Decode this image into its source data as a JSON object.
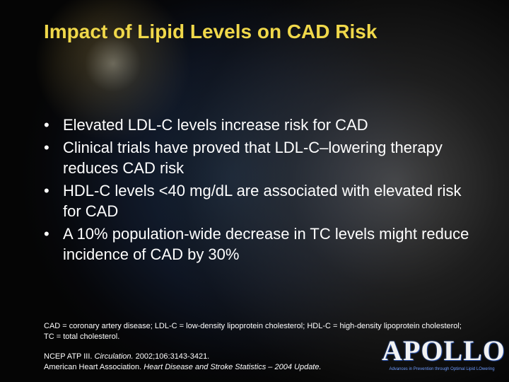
{
  "title": "Impact of Lipid Levels on CAD Risk",
  "bullets": [
    "Elevated LDL-C levels increase risk for CAD",
    "Clinical trials have proved that LDL-C–lowering therapy reduces CAD risk",
    "HDL-C levels <40 mg/dL are associated with elevated risk for CAD",
    "A 10% population-wide decrease in TC levels might reduce incidence of CAD by 30%"
  ],
  "footnote": "CAD = coronary artery disease; LDL-C = low-density lipoprotein cholesterol; HDL-C = high-density lipoprotein cholesterol; TC = total cholesterol.",
  "references": [
    {
      "source": "NCEP ATP III.",
      "journal": "Circulation.",
      "details": "2002;106:3143-3421."
    },
    {
      "source": "American Heart Association.",
      "journal": "Heart Disease and Stroke Statistics – 2004 Update."
    }
  ],
  "logo": {
    "name": "APOLLO",
    "tagline": "Advances in Prevention through Optimal Lipid LOwering"
  }
}
